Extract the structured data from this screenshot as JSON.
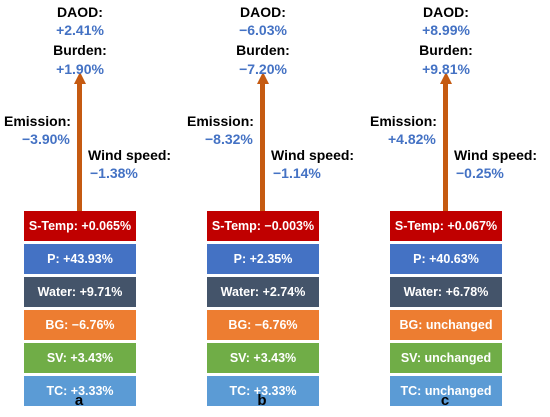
{
  "colors": {
    "arrow": "#c55a11",
    "value_text": "#4472c4",
    "layers": [
      "#c00000",
      "#4472c4",
      "#44546a",
      "#ed7d31",
      "#70ad47",
      "#5b9bd5"
    ]
  },
  "labels": {
    "daod": "DAOD:",
    "burden": "Burden:",
    "emission": "Emission:",
    "wind": "Wind speed:"
  },
  "panels": [
    {
      "letter": "a",
      "daod": "+2.41%",
      "burden": "+1.90%",
      "emission": "−3.90%",
      "wind": "−1.38%",
      "layers": [
        "S-Temp: +0.065%",
        "P: +43.93%",
        "Water: +9.71%",
        "BG: −6.76%",
        "SV: +3.43%",
        "TC: +3.33%"
      ]
    },
    {
      "letter": "b",
      "daod": "−6.03%",
      "burden": "−7.20%",
      "emission": "−8.32%",
      "wind": "−1.14%",
      "layers": [
        "S-Temp: −0.003%",
        "P: +2.35%",
        "Water: +2.74%",
        "BG: −6.76%",
        "SV: +3.43%",
        "TC: +3.33%"
      ]
    },
    {
      "letter": "c",
      "daod": "+8.99%",
      "burden": "+9.81%",
      "emission": "+4.82%",
      "wind": "−0.25%",
      "layers": [
        "S-Temp: +0.067%",
        "P: +40.63%",
        "Water: +6.78%",
        "BG: unchanged",
        "SV: unchanged",
        "TC: unchanged"
      ]
    }
  ]
}
